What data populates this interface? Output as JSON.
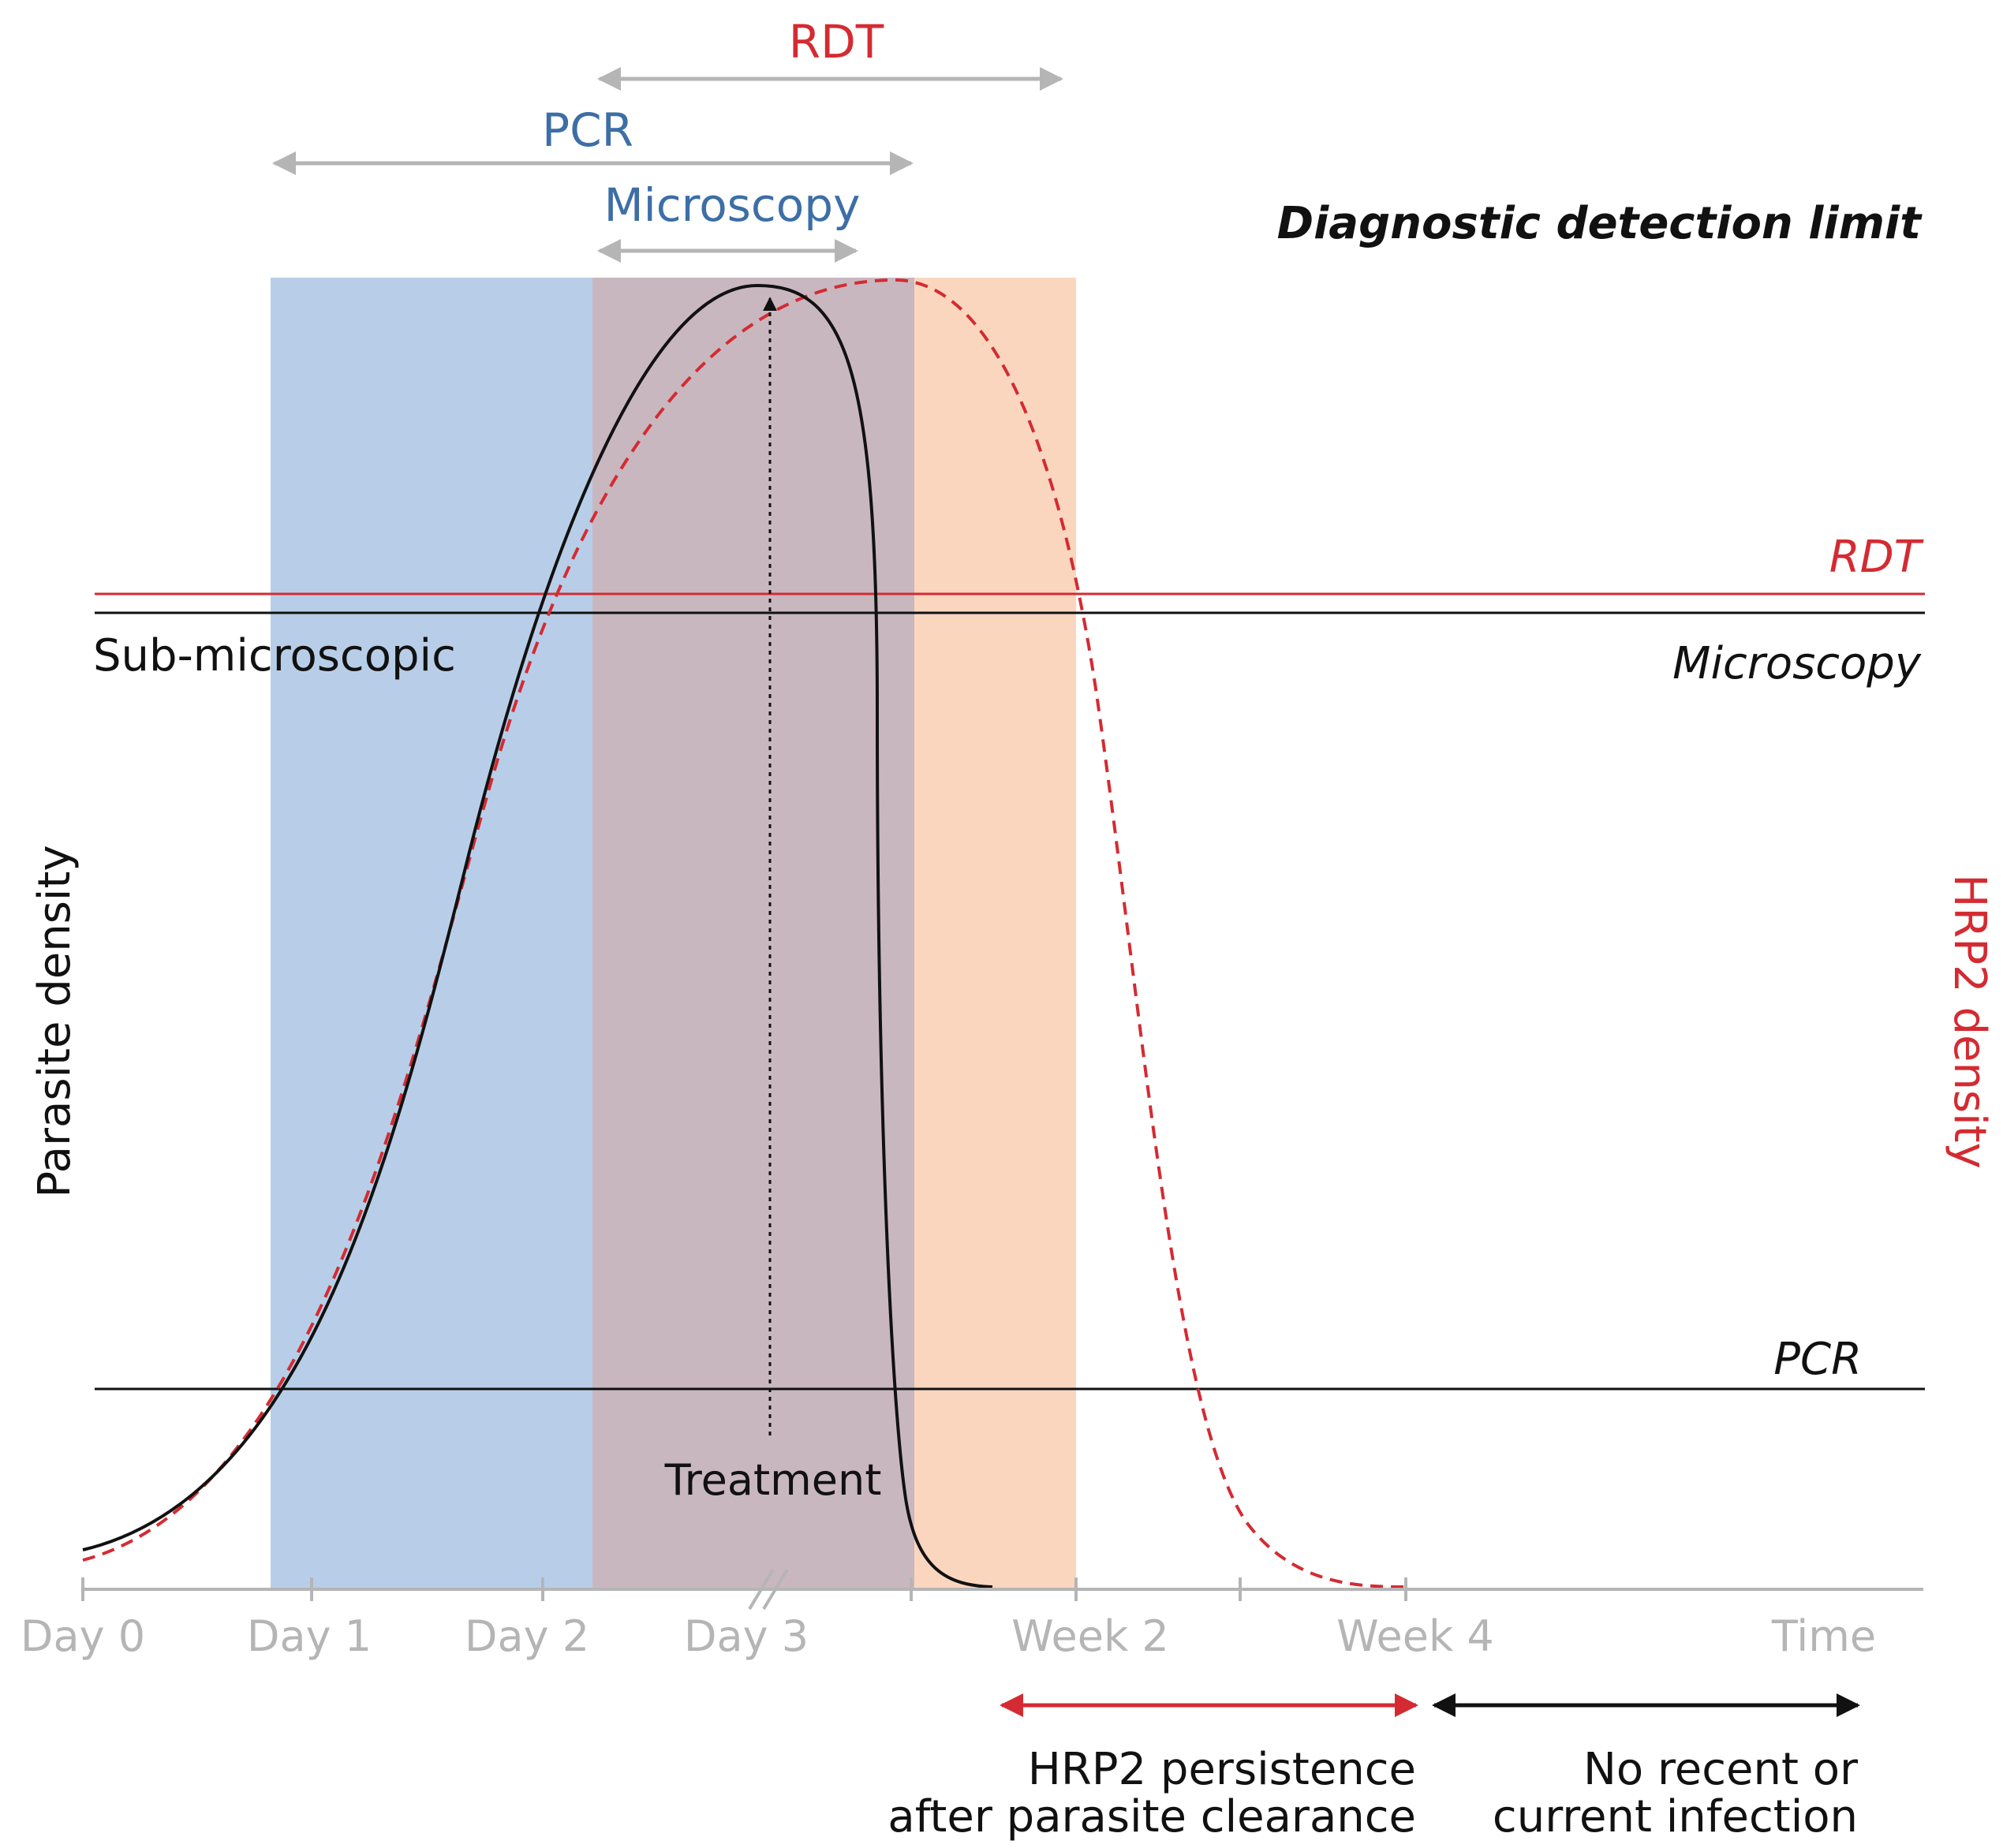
{
  "diagram": {
    "y_axis_label": "Parasite density",
    "y2_axis_label": "HRP2 density",
    "detection_limit_heading": "Diagnostic detection limit",
    "sub_microscopic_label": "Sub-microscopic",
    "treatment_label": "Treatment",
    "thresholds": {
      "rdt": "RDT",
      "microscopy": "Microscopy",
      "pcr": "PCR"
    },
    "detection_windows": {
      "rdt": "RDT",
      "pcr": "PCR",
      "microscopy": "Microscopy"
    },
    "x_ticks": [
      "Day 0",
      "Day 1",
      "Day 2",
      "Day 3",
      "Week 2",
      "Week 4",
      "Time"
    ],
    "periods": {
      "hrp2_persistence_line1": "HRP2 persistence",
      "hrp2_persistence_line2": "after parasite clearance",
      "no_infection_line1": "No recent or",
      "no_infection_line2": "current infection"
    }
  },
  "colors": {
    "blue_band": "#b8cee8",
    "mauve_band": "#c9b7bf",
    "peach_band": "#fad6bf",
    "red": "#d42b32",
    "blue_text": "#3d6ea6",
    "grey": "#b5b5b5",
    "black": "#111111"
  }
}
